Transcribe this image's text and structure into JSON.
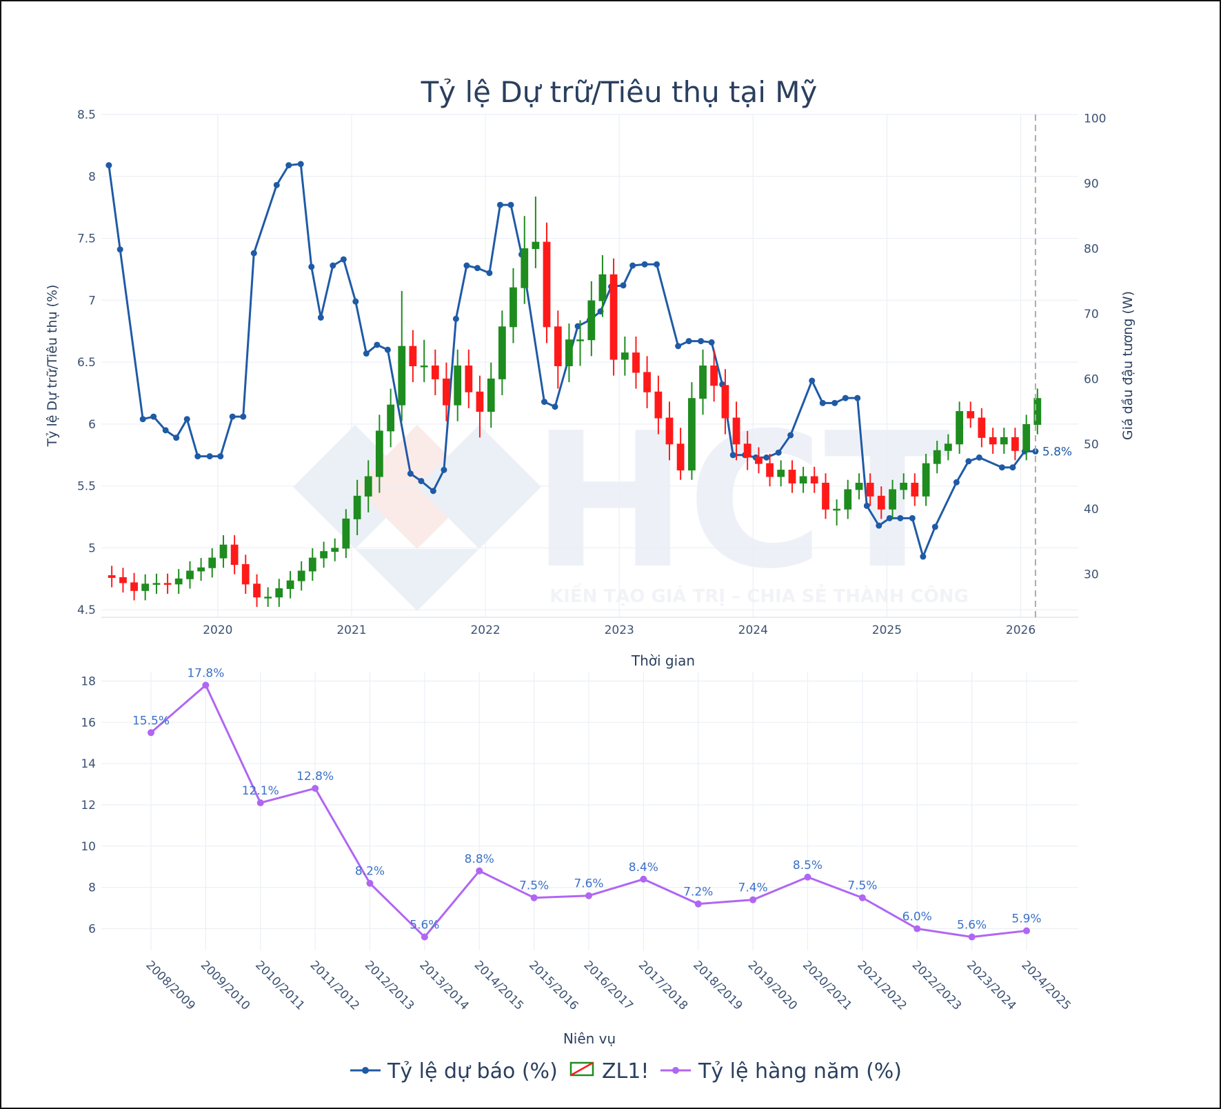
{
  "chart_data": [
    {
      "type": "candlestick",
      "title": "Tỷ lệ Dự trữ/Tiêu thụ tại Mỹ",
      "x_title": "Thời gian",
      "y_title": "Tỷ lệ Dự trữ/Tiêu thụ (%)",
      "y2_title": "Giá dầu đậu tương (W)",
      "xlim": [
        2019.13,
        2026.43
      ],
      "xticks": [
        2020,
        2021,
        2022,
        2023,
        2024,
        2025,
        2026
      ],
      "ylim": [
        4.44,
        8.5
      ],
      "yticks": [
        4.5,
        5,
        5.5,
        6,
        6.5,
        7,
        7.5,
        8,
        8.5
      ],
      "y2lim": [
        23.4,
        100.6
      ],
      "y2ticks": [
        30,
        40,
        50,
        60,
        70,
        80,
        90,
        100
      ],
      "grid": true,
      "legend": "bottom",
      "reference_line": {
        "x": 2026.11,
        "color": "#aaaaaa",
        "dash": true
      },
      "series": [
        {
          "name": "Tỷ lệ dự báo (%)",
          "type": "line",
          "color": "#1f5aa6",
          "axis": "y",
          "x": [
            2019.186,
            2019.27,
            2019.44,
            2019.52,
            2019.61,
            2019.69,
            2019.77,
            2019.85,
            2019.94,
            2020.02,
            2020.11,
            2020.19,
            2020.27,
            2020.44,
            2020.53,
            2020.62,
            2020.7,
            2020.77,
            2020.86,
            2020.94,
            2021.03,
            2021.11,
            2021.19,
            2021.27,
            2021.44,
            2021.52,
            2021.61,
            2021.69,
            2021.78,
            2021.86,
            2021.94,
            2022.03,
            2022.11,
            2022.19,
            2022.27,
            2022.44,
            2022.52,
            2022.69,
            2022.78,
            2022.86,
            2022.94,
            2023.03,
            2023.1,
            2023.19,
            2023.28,
            2023.44,
            2023.52,
            2023.61,
            2023.69,
            2023.77,
            2023.85,
            2023.94,
            2024.02,
            2024.1,
            2024.19,
            2024.28,
            2024.44,
            2024.52,
            2024.61,
            2024.69,
            2024.78,
            2024.85,
            2024.94,
            2025.02,
            2025.1,
            2025.19,
            2025.27,
            2025.36,
            2025.52,
            2025.61,
            2025.69,
            2025.86,
            2025.94,
            2026.03,
            2026.11
          ],
          "values": [
            8.09,
            7.41,
            6.04,
            6.06,
            5.95,
            5.89,
            6.04,
            5.74,
            5.74,
            5.74,
            6.06,
            6.06,
            7.38,
            7.93,
            8.09,
            8.1,
            7.27,
            6.86,
            7.28,
            7.33,
            6.99,
            6.57,
            6.64,
            6.6,
            5.6,
            5.54,
            5.46,
            5.63,
            6.85,
            7.28,
            7.26,
            7.22,
            7.77,
            7.77,
            7.37,
            6.18,
            6.14,
            6.79,
            6.84,
            6.91,
            7.11,
            7.12,
            7.28,
            7.29,
            7.29,
            6.63,
            6.67,
            6.67,
            6.66,
            6.32,
            5.75,
            5.75,
            5.73,
            5.73,
            5.77,
            5.91,
            6.35,
            6.17,
            6.17,
            6.21,
            6.21,
            5.34,
            5.18,
            5.24,
            5.24,
            5.24,
            4.93,
            5.17,
            5.53,
            5.7,
            5.73,
            5.65,
            5.65,
            5.78,
            5.78
          ],
          "value_labels": [
            null,
            null,
            null,
            null,
            null,
            null,
            null,
            null,
            null,
            null,
            null,
            null,
            null,
            null,
            null,
            null,
            null,
            null,
            null,
            null,
            null,
            null,
            null,
            null,
            null,
            null,
            null,
            null,
            null,
            null,
            null,
            null,
            null,
            null,
            null,
            null,
            null,
            null,
            null,
            null,
            null,
            null,
            null,
            null,
            null,
            null,
            null,
            null,
            null,
            null,
            null,
            null,
            null,
            null,
            null,
            null,
            null,
            null,
            null,
            null,
            null,
            null,
            null,
            null,
            null,
            null,
            null,
            null,
            null,
            null,
            null,
            null,
            null,
            null,
            "5.8%"
          ]
        },
        {
          "name": "ZL1!",
          "type": "candlestick",
          "axis": "y2",
          "increasing_color": "#1e8c1e",
          "decreasing_color": "#ff1a1a",
          "x": [
            2019.208,
            2019.292,
            2019.375,
            2019.458,
            2019.542,
            2019.625,
            2019.708,
            2019.792,
            2019.875,
            2019.958,
            2020.042,
            2020.125,
            2020.208,
            2020.292,
            2020.375,
            2020.458,
            2020.542,
            2020.625,
            2020.708,
            2020.792,
            2020.875,
            2020.958,
            2021.042,
            2021.125,
            2021.208,
            2021.292,
            2021.375,
            2021.458,
            2021.542,
            2021.625,
            2021.708,
            2021.792,
            2021.875,
            2021.958,
            2022.042,
            2022.125,
            2022.208,
            2022.292,
            2022.375,
            2022.458,
            2022.542,
            2022.625,
            2022.708,
            2022.792,
            2022.875,
            2022.958,
            2023.042,
            2023.125,
            2023.208,
            2023.292,
            2023.375,
            2023.458,
            2023.542,
            2023.625,
            2023.708,
            2023.792,
            2023.875,
            2023.958,
            2024.042,
            2024.125,
            2024.208,
            2024.292,
            2024.375,
            2024.458,
            2024.542,
            2024.625,
            2024.708,
            2024.792,
            2024.875,
            2024.958,
            2025.042,
            2025.125,
            2025.208,
            2025.292,
            2025.375,
            2025.458,
            2025.542,
            2025.625,
            2025.708,
            2025.792,
            2025.875,
            2025.958,
            2026.042,
            2026.125
          ],
          "open": [
            29.8,
            29.5,
            28.7,
            27.5,
            28.5,
            28.6,
            28.5,
            29.3,
            30.5,
            31.0,
            32.5,
            34.5,
            31.5,
            28.5,
            26.5,
            26.5,
            27.8,
            29.0,
            30.5,
            32.5,
            33.5,
            34.0,
            38.5,
            42,
            45,
            52,
            56,
            65,
            62,
            62,
            60,
            56,
            62,
            58,
            55,
            60,
            68,
            74,
            80,
            81,
            68,
            62,
            66,
            66,
            72,
            76,
            63,
            64,
            61,
            58,
            54,
            50,
            46,
            57,
            62,
            59,
            54,
            50,
            48,
            47,
            45,
            46,
            44,
            45,
            44,
            40,
            40,
            43,
            44,
            42,
            40,
            43,
            44,
            42,
            47,
            49,
            50,
            55,
            54,
            51,
            50,
            51,
            49,
            53
          ],
          "high": [
            31.3,
            31.0,
            30.2,
            30.0,
            30.1,
            30.1,
            30.8,
            32.0,
            32.5,
            34.0,
            36.0,
            36.0,
            33.0,
            30.0,
            28.0,
            29.3,
            30.5,
            32.0,
            34.0,
            35.0,
            35.5,
            40.0,
            44.5,
            47.5,
            54.5,
            58.5,
            73.5,
            67.5,
            66,
            64.5,
            62.5,
            64.5,
            64.5,
            60.5,
            62.5,
            70.5,
            77,
            85,
            88,
            84,
            70.5,
            68.5,
            69,
            75,
            79,
            78.5,
            66.5,
            66.5,
            63.5,
            60.5,
            56.5,
            52.5,
            59.5,
            64.5,
            64.5,
            61.5,
            56.5,
            52,
            49.5,
            48.5,
            47.5,
            47.5,
            46.5,
            46.5,
            45.5,
            41.5,
            44.5,
            45.5,
            45.5,
            43.5,
            44.5,
            45.5,
            45.5,
            48.5,
            50.5,
            51.5,
            56.5,
            56.5,
            55.5,
            52.5,
            52.5,
            52.5,
            54.5,
            58.5
          ],
          "low": [
            28.0,
            27.2,
            26.0,
            26.0,
            27.0,
            27.0,
            27.0,
            27.8,
            29.0,
            29.5,
            31.0,
            30.0,
            27.0,
            25.0,
            25.0,
            25.0,
            26.3,
            27.5,
            29.0,
            31.0,
            32.0,
            32.5,
            36.0,
            39.5,
            42.5,
            49.5,
            53.5,
            59.5,
            59.5,
            57.5,
            53.5,
            53.5,
            55.5,
            51,
            52.5,
            57.5,
            65.5,
            71.5,
            77,
            65.5,
            58.5,
            59.5,
            62,
            63.5,
            69.5,
            60.5,
            60.5,
            58.5,
            55.5,
            51.5,
            47.5,
            44.5,
            44.5,
            54.5,
            56.5,
            51.5,
            47.5,
            46,
            45.5,
            43.5,
            43.5,
            42.5,
            42.5,
            42.5,
            38.5,
            37.5,
            38.5,
            41.5,
            40.5,
            38.5,
            38.5,
            41.5,
            40.5,
            40.5,
            45.5,
            47.5,
            48.5,
            52.5,
            49.5,
            48.5,
            48.5,
            47.5,
            47.5,
            51.5
          ],
          "close": [
            29.5,
            28.7,
            27.5,
            28.5,
            28.6,
            28.5,
            29.3,
            30.5,
            31.0,
            32.5,
            34.5,
            31.5,
            28.5,
            26.5,
            26.5,
            27.8,
            29.0,
            30.5,
            32.5,
            33.5,
            34.0,
            38.5,
            42,
            45,
            52,
            56,
            65,
            62,
            62,
            60,
            56,
            62,
            58,
            55,
            60,
            68,
            74,
            80,
            81,
            68,
            62,
            66,
            66,
            72,
            76,
            63,
            64,
            61,
            58,
            54,
            50,
            46,
            57,
            62,
            59,
            54,
            50,
            48,
            47,
            45,
            46,
            44,
            45,
            44,
            40,
            40,
            43,
            44,
            42,
            40,
            43,
            44,
            42,
            47,
            49,
            50,
            55,
            54,
            51,
            50,
            51,
            49,
            53,
            57
          ]
        }
      ]
    },
    {
      "type": "line",
      "x_title": "Niên vụ",
      "categories": [
        "2008/2009",
        "2009/2010",
        "2010/2011",
        "2011/2012",
        "2012/2013",
        "2013/2014",
        "2014/2015",
        "2015/2016",
        "2016/2017",
        "2017/2018",
        "2018/2019",
        "2019/2020",
        "2020/2021",
        "2021/2022",
        "2022/2023",
        "2023/2024",
        "2024/2025"
      ],
      "ylim": [
        4.95,
        18.45
      ],
      "yticks": [
        6,
        8,
        10,
        12,
        14,
        16,
        18
      ],
      "grid": true,
      "series": [
        {
          "name": "Tỷ lệ hàng năm (%)",
          "color": "#b066f2",
          "label_color": "#3a70c8",
          "values": [
            15.5,
            17.8,
            12.1,
            12.8,
            8.2,
            5.6,
            8.8,
            7.5,
            7.6,
            8.4,
            7.2,
            7.4,
            8.5,
            7.5,
            6.0,
            5.6,
            5.9
          ],
          "value_labels": [
            "15.5%",
            "17.8%",
            "12.1%",
            "12.8%",
            "8.2%",
            "5.6%",
            "8.8%",
            "7.5%",
            "7.6%",
            "8.4%",
            "7.2%",
            "7.4%",
            "8.5%",
            "7.5%",
            "6.0%",
            "5.6%",
            "5.9%"
          ]
        }
      ]
    }
  ],
  "watermark": {
    "logo": "HCT",
    "tagline": "KIẾN TẠO GIÁ TRỊ – CHIA SẺ THÀNH CÔNG"
  }
}
